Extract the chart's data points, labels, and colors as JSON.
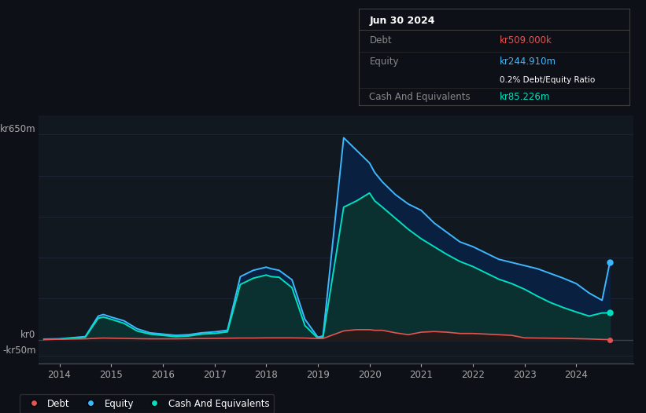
{
  "bg_color": "#0d1117",
  "plot_bg_color": "#111820",
  "grid_color": "#1e2535",
  "tooltip_date": "Jun 30 2024",
  "tooltip_debt_label": "Debt",
  "tooltip_debt_value": "kr509.000k",
  "tooltip_equity_label": "Equity",
  "tooltip_equity_value": "kr244.910m",
  "tooltip_ratio": "0.2% Debt/Equity Ratio",
  "tooltip_cash_label": "Cash And Equivalents",
  "tooltip_cash_value": "kr85.226m",
  "debt_color": "#e05555",
  "equity_color": "#3db8ff",
  "cash_color": "#00e0c0",
  "equity_fill_color": "#0a2040",
  "cash_fill_color": "#0a3030",
  "debt_fill_color": "#2a1515",
  "ylabel_top": "kr650m",
  "ylabel_zero": "kr0",
  "ylabel_neg": "-kr50m",
  "ylim": [
    -75000000,
    710000000
  ],
  "xlim": [
    2013.6,
    2025.1
  ],
  "xticks": [
    2014,
    2015,
    2016,
    2017,
    2018,
    2019,
    2020,
    2021,
    2022,
    2023,
    2024
  ],
  "legend_labels": [
    "Debt",
    "Equity",
    "Cash And Equivalents"
  ],
  "legend_colors": [
    "#e05555",
    "#3db8ff",
    "#00e0c0"
  ],
  "years": [
    2013.7,
    2014.0,
    2014.5,
    2014.75,
    2014.85,
    2015.0,
    2015.25,
    2015.5,
    2015.75,
    2016.0,
    2016.25,
    2016.5,
    2016.75,
    2017.0,
    2017.25,
    2017.5,
    2017.75,
    2018.0,
    2018.1,
    2018.25,
    2018.5,
    2018.75,
    2019.0,
    2019.1,
    2019.5,
    2019.75,
    2020.0,
    2020.1,
    2020.25,
    2020.5,
    2020.75,
    2021.0,
    2021.25,
    2021.5,
    2021.75,
    2022.0,
    2022.25,
    2022.5,
    2022.75,
    2023.0,
    2023.25,
    2023.5,
    2023.75,
    2024.0,
    2024.25,
    2024.5,
    2024.65
  ],
  "equity": [
    2000000,
    3000000,
    10000000,
    75000000,
    80000000,
    72000000,
    60000000,
    35000000,
    22000000,
    18000000,
    14000000,
    16000000,
    22000000,
    25000000,
    30000000,
    200000000,
    220000000,
    230000000,
    225000000,
    220000000,
    190000000,
    65000000,
    8000000,
    12000000,
    640000000,
    600000000,
    560000000,
    530000000,
    500000000,
    460000000,
    430000000,
    410000000,
    370000000,
    340000000,
    310000000,
    295000000,
    275000000,
    255000000,
    245000000,
    235000000,
    225000000,
    210000000,
    195000000,
    178000000,
    148000000,
    125000000,
    244910000
  ],
  "cash": [
    1000000,
    2000000,
    8000000,
    68000000,
    72000000,
    65000000,
    52000000,
    28000000,
    18000000,
    14000000,
    10000000,
    12000000,
    18000000,
    20000000,
    25000000,
    175000000,
    195000000,
    205000000,
    200000000,
    198000000,
    165000000,
    45000000,
    5000000,
    8000000,
    420000000,
    440000000,
    465000000,
    440000000,
    420000000,
    385000000,
    350000000,
    320000000,
    295000000,
    270000000,
    248000000,
    232000000,
    212000000,
    192000000,
    178000000,
    160000000,
    138000000,
    118000000,
    102000000,
    88000000,
    75000000,
    85000000,
    85226000
  ],
  "debt": [
    1000000,
    1500000,
    3000000,
    5000000,
    5500000,
    5000000,
    4500000,
    3500000,
    3000000,
    3000000,
    3000000,
    3500000,
    4000000,
    4500000,
    5000000,
    5500000,
    5500000,
    6000000,
    6000000,
    6000000,
    6000000,
    5500000,
    4000000,
    4000000,
    28000000,
    32000000,
    32000000,
    30000000,
    30000000,
    22000000,
    16000000,
    24000000,
    26000000,
    24000000,
    20000000,
    20000000,
    18000000,
    16000000,
    14000000,
    6000000,
    5500000,
    5000000,
    4500000,
    3500000,
    2500000,
    1000000,
    509000
  ]
}
